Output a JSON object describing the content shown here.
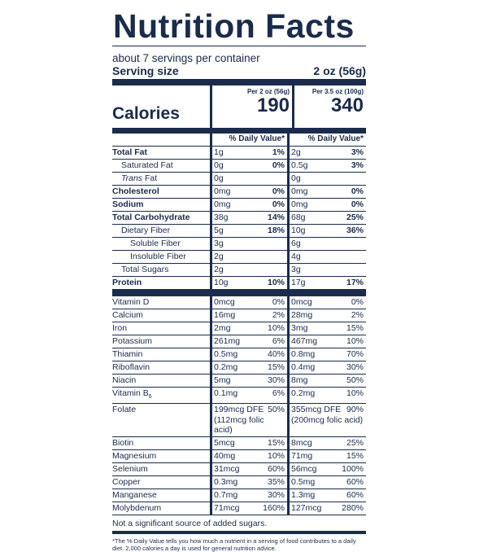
{
  "title": "Nutrition Facts",
  "servings_per_container": "about 7 servings per container",
  "serving_size_label": "Serving size",
  "serving_size_value": "2 oz (56g)",
  "calories_label": "Calories",
  "columns": [
    {
      "header": "Per 2 oz (56g)",
      "calories": "190"
    },
    {
      "header": "Per 3.5 oz (100g)",
      "calories": "340"
    }
  ],
  "daily_value_header": "% Daily Value*",
  "nutrients": [
    {
      "name": "Total Fat",
      "bold": true,
      "indent": 0,
      "c1_amt": "1g",
      "c1_dv": "1%",
      "c2_amt": "2g",
      "c2_dv": "3%",
      "dv_bold": true
    },
    {
      "name": "Saturated Fat",
      "bold": false,
      "indent": 1,
      "c1_amt": "0g",
      "c1_dv": "0%",
      "c2_amt": "0.5g",
      "c2_dv": "3%",
      "dv_bold": true
    },
    {
      "name_italic": "Trans",
      "name": " Fat",
      "bold": false,
      "indent": 1,
      "c1_amt": "0g",
      "c1_dv": "",
      "c2_amt": "0g",
      "c2_dv": ""
    },
    {
      "name": "Cholesterol",
      "bold": true,
      "indent": 0,
      "c1_amt": "0mg",
      "c1_dv": "0%",
      "c2_amt": "0mg",
      "c2_dv": "0%",
      "dv_bold": true
    },
    {
      "name": "Sodium",
      "bold": true,
      "indent": 0,
      "c1_amt": "0mg",
      "c1_dv": "0%",
      "c2_amt": "0mg",
      "c2_dv": "0%",
      "dv_bold": true
    },
    {
      "name": "Total Carbohydrate",
      "bold": true,
      "indent": 0,
      "c1_amt": "38g",
      "c1_dv": "14%",
      "c2_amt": "68g",
      "c2_dv": "25%",
      "dv_bold": true
    },
    {
      "name": "Dietary Fiber",
      "bold": false,
      "indent": 1,
      "c1_amt": "5g",
      "c1_dv": "18%",
      "c2_amt": "10g",
      "c2_dv": "36%",
      "dv_bold": true
    },
    {
      "name": "Soluble Fiber",
      "bold": false,
      "indent": 2,
      "c1_amt": "3g",
      "c1_dv": "",
      "c2_amt": "6g",
      "c2_dv": ""
    },
    {
      "name": "Insoluble Fiber",
      "bold": false,
      "indent": 2,
      "c1_amt": "2g",
      "c1_dv": "",
      "c2_amt": "4g",
      "c2_dv": ""
    },
    {
      "name": "Total Sugars",
      "bold": false,
      "indent": 1,
      "c1_amt": "2g",
      "c1_dv": "",
      "c2_amt": "3g",
      "c2_dv": ""
    },
    {
      "name": "Protein",
      "bold": true,
      "indent": 0,
      "c1_amt": "10g",
      "c1_dv": "10%",
      "c2_amt": "17g",
      "c2_dv": "17%",
      "dv_bold": true
    }
  ],
  "vitamins": [
    {
      "name": "Vitamin D",
      "c1_amt": "0mcg",
      "c1_dv": "0%",
      "c2_amt": "0mcg",
      "c2_dv": "0%"
    },
    {
      "name": "Calcium",
      "c1_amt": "16mg",
      "c1_dv": "2%",
      "c2_amt": "28mg",
      "c2_dv": "2%"
    },
    {
      "name": "Iron",
      "c1_amt": "2mg",
      "c1_dv": "10%",
      "c2_amt": "3mg",
      "c2_dv": "15%"
    },
    {
      "name": "Potassium",
      "c1_amt": "261mg",
      "c1_dv": "6%",
      "c2_amt": "467mg",
      "c2_dv": "10%"
    },
    {
      "name": "Thiamin",
      "c1_amt": "0.5mg",
      "c1_dv": "40%",
      "c2_amt": "0.8mg",
      "c2_dv": "70%"
    },
    {
      "name": "Riboflavin",
      "c1_amt": "0.2mg",
      "c1_dv": "15%",
      "c2_amt": "0.4mg",
      "c2_dv": "30%"
    },
    {
      "name": "Niacin",
      "c1_amt": "5mg",
      "c1_dv": "30%",
      "c2_amt": "8mg",
      "c2_dv": "50%"
    },
    {
      "name": "Vitamin B",
      "name_sub": "6",
      "c1_amt": "0.1mg",
      "c1_dv": "6%",
      "c2_amt": "0.2mg",
      "c2_dv": "10%"
    },
    {
      "name": "Folate",
      "c1_amt": "199mcg DFE",
      "c1_dv": "50%",
      "c1_extra": "(112mcg folic acid)",
      "c2_amt": "355mcg DFE",
      "c2_dv": "90%",
      "c2_extra": "(200mcg folic acid)"
    },
    {
      "name": "Biotin",
      "c1_amt": "5mcg",
      "c1_dv": "15%",
      "c2_amt": "8mcg",
      "c2_dv": "25%"
    },
    {
      "name": "Magnesium",
      "c1_amt": "40mg",
      "c1_dv": "10%",
      "c2_amt": "71mg",
      "c2_dv": "15%"
    },
    {
      "name": "Selenium",
      "c1_amt": "31mcg",
      "c1_dv": "60%",
      "c2_amt": "56mcg",
      "c2_dv": "100%"
    },
    {
      "name": "Copper",
      "c1_amt": "0.3mg",
      "c1_dv": "35%",
      "c2_amt": "0.5mg",
      "c2_dv": "60%"
    },
    {
      "name": "Manganese",
      "c1_amt": "0.7mg",
      "c1_dv": "30%",
      "c2_amt": "1.3mg",
      "c2_dv": "60%"
    },
    {
      "name": "Molybdenum",
      "c1_amt": "71mcg",
      "c1_dv": "160%",
      "c2_amt": "127mcg",
      "c2_dv": "280%"
    }
  ],
  "added_sugars_note": "Not a significant source of added sugars.",
  "footnote": "*The % Daily Value tells you how much a nutrient in a serving of food contributes to a daily diet. 2,000 calories a day is used for general nutrition advice.",
  "colors": {
    "ink": "#1a2b4c",
    "background": "#ffffff"
  }
}
